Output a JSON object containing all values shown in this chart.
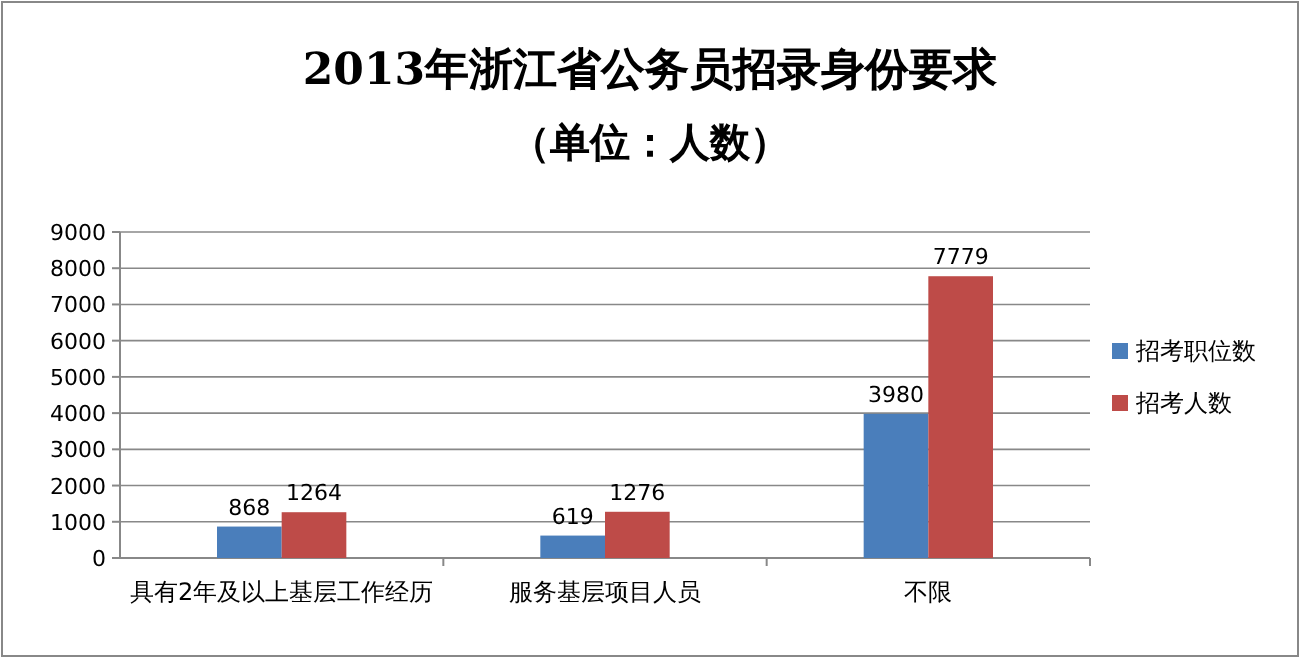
{
  "chart_data": {
    "type": "bar",
    "title": "2013年浙江省公务员招录身份要求",
    "subtitle": "（单位：人数）",
    "categories": [
      "具有2年及以上基层工作经历",
      "服务基层项目人员",
      "不限"
    ],
    "series": [
      {
        "name": "招考职位数",
        "color": "#4a7ebb",
        "values": [
          868,
          619,
          3980
        ]
      },
      {
        "name": "招考人数",
        "color": "#be4b48",
        "values": [
          1264,
          1276,
          7779
        ]
      }
    ],
    "ylim": [
      0,
      9000
    ],
    "yticks": [
      0,
      1000,
      2000,
      3000,
      4000,
      5000,
      6000,
      7000,
      8000,
      9000
    ],
    "grid": "y",
    "legend": "right",
    "data_labels": true
  }
}
